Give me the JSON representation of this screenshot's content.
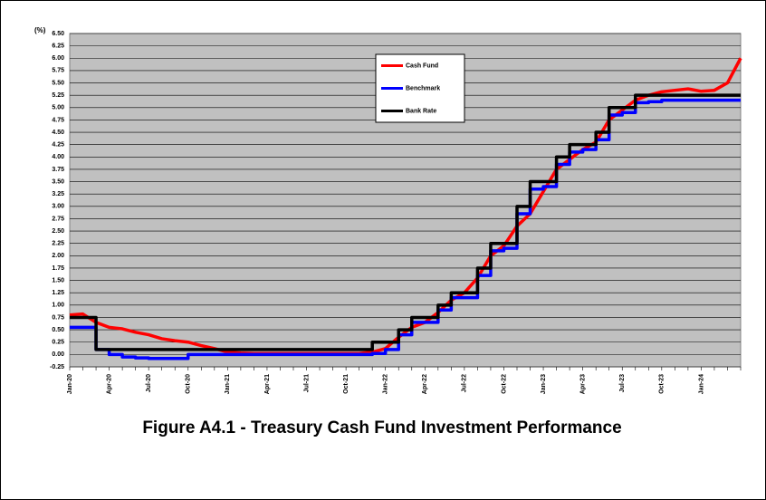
{
  "chart_data": {
    "type": "line",
    "title": "Figure A4.1 - Treasury Cash Fund Investment Performance",
    "y_label": "(%)",
    "categories": [
      "Jan-20",
      null,
      null,
      "Apr-20",
      null,
      null,
      "Jul-20",
      null,
      null,
      "Oct-20",
      null,
      null,
      "Jan-21",
      null,
      null,
      "Apr-21",
      null,
      null,
      "Jul-21",
      null,
      null,
      "Oct-21",
      null,
      null,
      "Jan-22",
      null,
      null,
      "Apr-22",
      null,
      null,
      "Jul-22",
      null,
      null,
      "Oct-22",
      null,
      null,
      "Jan-23",
      null,
      null,
      "Apr-23",
      null,
      null,
      "Jul-23",
      null,
      null,
      "Oct-23",
      null,
      null,
      "Jan-24",
      null,
      null,
      null
    ],
    "series": [
      {
        "name": "Cash Fund",
        "color": "#ff0000",
        "step": false,
        "values": [
          0.8,
          0.82,
          0.65,
          0.55,
          0.52,
          0.45,
          0.4,
          0.32,
          0.28,
          0.25,
          0.18,
          0.12,
          0.05,
          0.03,
          0.02,
          0.02,
          0.02,
          0.02,
          0.02,
          0.02,
          0.02,
          0.02,
          0.02,
          0.05,
          0.12,
          0.35,
          0.55,
          0.65,
          0.85,
          1.1,
          1.25,
          1.55,
          2.0,
          2.2,
          2.6,
          2.85,
          3.3,
          3.75,
          3.95,
          4.15,
          4.3,
          4.75,
          4.95,
          5.15,
          5.25,
          5.32,
          5.35,
          5.38,
          5.33,
          5.35,
          5.5,
          6.0
        ]
      },
      {
        "name": "Benchmark",
        "color": "#0000ff",
        "step": true,
        "values": [
          0.55,
          0.55,
          0.1,
          0,
          -0.05,
          -0.07,
          -0.08,
          -0.08,
          -0.08,
          0,
          0,
          0,
          0,
          0,
          0,
          0,
          0,
          0,
          0,
          0,
          0,
          0,
          0,
          0.02,
          0.1,
          0.4,
          0.65,
          0.65,
          0.9,
          1.15,
          1.15,
          1.6,
          2.1,
          2.15,
          2.85,
          3.35,
          3.4,
          3.85,
          4.1,
          4.15,
          4.35,
          4.85,
          4.9,
          5.1,
          5.12,
          5.15,
          5.15,
          5.15,
          5.15,
          5.15,
          5.15,
          5.15
        ]
      },
      {
        "name": "Bank Rate",
        "color": "#000000",
        "step": true,
        "values": [
          0.75,
          0.75,
          0.1,
          0.1,
          0.1,
          0.1,
          0.1,
          0.1,
          0.1,
          0.1,
          0.1,
          0.1,
          0.1,
          0.1,
          0.1,
          0.1,
          0.1,
          0.1,
          0.1,
          0.1,
          0.1,
          0.1,
          0.1,
          0.25,
          0.25,
          0.5,
          0.75,
          0.75,
          1,
          1.25,
          1.25,
          1.75,
          2.25,
          2.25,
          3,
          3.5,
          3.5,
          4,
          4.25,
          4.25,
          4.5,
          5,
          5,
          5.25,
          5.25,
          5.25,
          5.25,
          5.25,
          5.25,
          5.25,
          5.25,
          5.25
        ]
      }
    ],
    "ylim": [
      -0.25,
      6.5
    ],
    "yticks": [
      {
        "value": -0.25,
        "label": "-0.25"
      },
      {
        "value": 0,
        "label": "0.00"
      },
      {
        "value": 0.25,
        "label": "0.25"
      },
      {
        "value": 0.5,
        "label": "0.50"
      },
      {
        "value": 0.75,
        "label": "0.75"
      },
      {
        "value": 1,
        "label": "1.00"
      },
      {
        "value": 1.25,
        "label": "1.25"
      },
      {
        "value": 1.5,
        "label": "1.50"
      },
      {
        "value": 1.75,
        "label": "1.75"
      },
      {
        "value": 2,
        "label": "2.00"
      },
      {
        "value": 2.25,
        "label": "2.25"
      },
      {
        "value": 2.5,
        "label": "2.50"
      },
      {
        "value": 2.75,
        "label": "2.75"
      },
      {
        "value": 3,
        "label": "3.00"
      },
      {
        "value": 3.25,
        "label": "3.25"
      },
      {
        "value": 3.5,
        "label": "3.50"
      },
      {
        "value": 3.75,
        "label": "3.75"
      },
      {
        "value": 4,
        "label": "4.00"
      },
      {
        "value": 4.25,
        "label": "4.25"
      },
      {
        "value": 4.5,
        "label": "4.50"
      },
      {
        "value": 4.75,
        "label": "4.75"
      },
      {
        "value": 5,
        "label": "5.00"
      },
      {
        "value": 5.25,
        "label": "5.25"
      },
      {
        "value": 5.5,
        "label": "5.50"
      },
      {
        "value": 5.75,
        "label": "5.75"
      },
      {
        "value": 6,
        "label": "6.00"
      },
      {
        "value": 6.25,
        "label": "6.25"
      },
      {
        "value": 6.5,
        "label": "6.50"
      }
    ],
    "grid": true
  }
}
